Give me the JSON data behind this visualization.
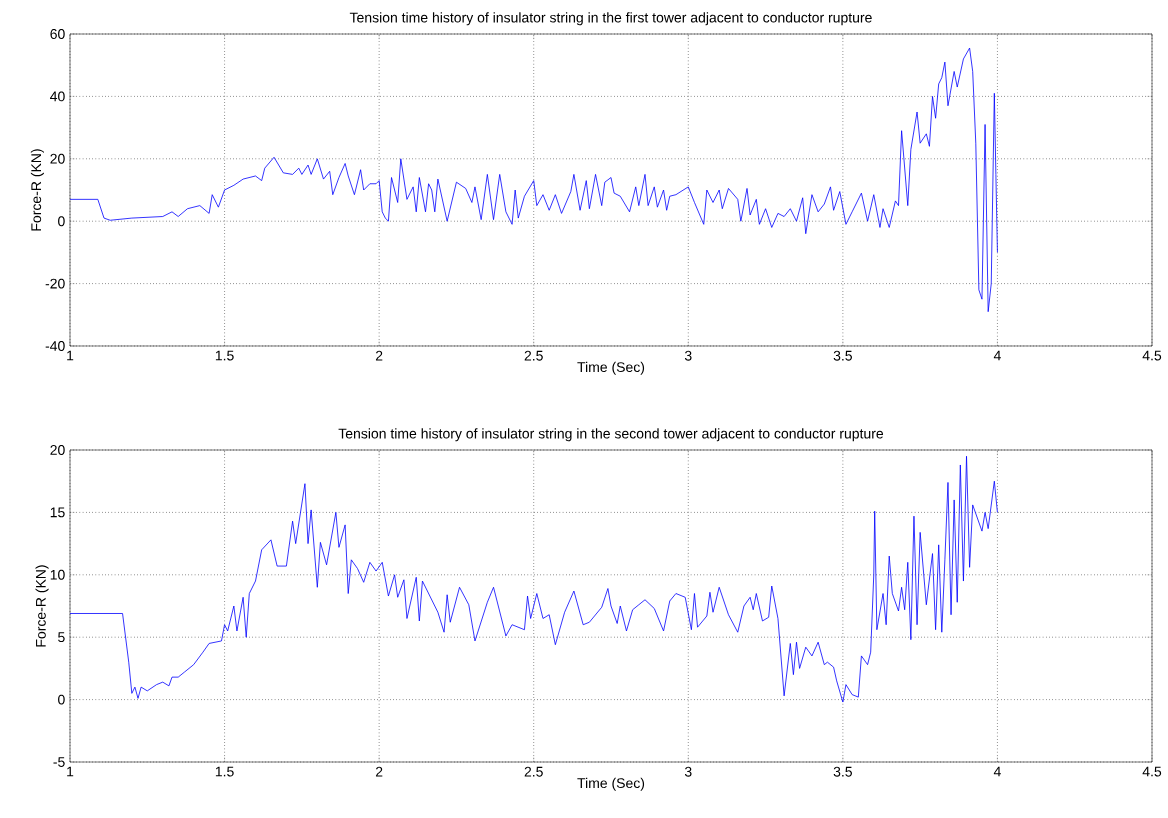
{
  "chart_data": [
    {
      "type": "line",
      "title": "Tension time history of insulator string in the first tower adjacent to conductor rupture",
      "xlabel": "Time (Sec)",
      "ylabel": "Force-R (KN)",
      "x": [
        1.0,
        1.09,
        1.11,
        1.13,
        1.2,
        1.3,
        1.33,
        1.35,
        1.38,
        1.42,
        1.45,
        1.46,
        1.48,
        1.5,
        1.53,
        1.56,
        1.6,
        1.62,
        1.63,
        1.66,
        1.69,
        1.72,
        1.74,
        1.75,
        1.77,
        1.78,
        1.8,
        1.82,
        1.84,
        1.85,
        1.87,
        1.89,
        1.9,
        1.92,
        1.94,
        1.95,
        1.97,
        1.99,
        2.0,
        2.01,
        2.02,
        2.03,
        2.04,
        2.06,
        2.07,
        2.09,
        2.11,
        2.12,
        2.13,
        2.15,
        2.16,
        2.17,
        2.18,
        2.19,
        2.22,
        2.25,
        2.28,
        2.3,
        2.31,
        2.33,
        2.35,
        2.37,
        2.39,
        2.41,
        2.43,
        2.44,
        2.45,
        2.47,
        2.5,
        2.51,
        2.53,
        2.55,
        2.57,
        2.59,
        2.62,
        2.63,
        2.65,
        2.67,
        2.68,
        2.7,
        2.72,
        2.73,
        2.75,
        2.76,
        2.78,
        2.81,
        2.83,
        2.84,
        2.86,
        2.87,
        2.89,
        2.9,
        2.92,
        2.93,
        2.94,
        2.96,
        3.0,
        3.02,
        3.05,
        3.06,
        3.08,
        3.1,
        3.11,
        3.13,
        3.16,
        3.17,
        3.19,
        3.2,
        3.22,
        3.23,
        3.25,
        3.27,
        3.29,
        3.31,
        3.33,
        3.35,
        3.37,
        3.38,
        3.4,
        3.42,
        3.44,
        3.46,
        3.47,
        3.49,
        3.51,
        3.53,
        3.56,
        3.58,
        3.6,
        3.62,
        3.63,
        3.65,
        3.67,
        3.68,
        3.69,
        3.71,
        3.72,
        3.74,
        3.75,
        3.77,
        3.78,
        3.79,
        3.8,
        3.81,
        3.82,
        3.83,
        3.84,
        3.86,
        3.87,
        3.89,
        3.91,
        3.92,
        3.93,
        3.94,
        3.95,
        3.96,
        3.97,
        3.98,
        3.99,
        3.995,
        4.0
      ],
      "series": [
        {
          "color": "#0000ff",
          "values": [
            7,
            7,
            1,
            0.3,
            1,
            1.5,
            3,
            1.5,
            4,
            5,
            2.5,
            8.5,
            4.5,
            10,
            11.5,
            13.5,
            14.5,
            13,
            17,
            20.5,
            15.5,
            15,
            17,
            15,
            18,
            15,
            20,
            13.5,
            16,
            8.5,
            14,
            18.5,
            14.5,
            8.5,
            16.5,
            10,
            12,
            12,
            13,
            3,
            1,
            0,
            14,
            6,
            20,
            7,
            11,
            3,
            14,
            3,
            12,
            10,
            3,
            13.5,
            0,
            12.5,
            10.5,
            6,
            11,
            0.5,
            15,
            0.5,
            15,
            3,
            -1,
            10,
            1,
            8,
            13,
            5,
            8.5,
            3.5,
            8.5,
            2.5,
            9.5,
            15,
            3.5,
            13,
            4,
            15,
            5,
            12.5,
            14,
            9,
            8,
            3,
            11,
            5,
            15,
            5,
            11,
            4.5,
            10,
            3.5,
            8,
            8.5,
            11,
            6,
            -1,
            10,
            6,
            10,
            4,
            10.5,
            7,
            0,
            10.5,
            2,
            7,
            -1,
            4,
            -2,
            2.5,
            1.5,
            4,
            0,
            7.5,
            -4,
            8.5,
            3,
            5.5,
            11,
            3.5,
            9.5,
            -1,
            3,
            9,
            0,
            8.5,
            -2,
            4,
            -2,
            6.5,
            5,
            29,
            5,
            23,
            35,
            25,
            28,
            24,
            40,
            33,
            44,
            46,
            51,
            37,
            48,
            43,
            52,
            55.5,
            48,
            25,
            -22,
            -25,
            31,
            -29,
            -20,
            41,
            15,
            -10
          ]
        }
      ],
      "xlim": [
        1,
        4.5
      ],
      "xticks": [
        1,
        1.5,
        2,
        2.5,
        3,
        3.5,
        4,
        4.5
      ],
      "ylim": [
        -40,
        60
      ],
      "yticks": [
        -40,
        -20,
        0,
        20,
        40,
        60
      ],
      "grid": true
    },
    {
      "type": "line",
      "title": "Tension time history of insulator string in the second tower adjacent to conductor rupture",
      "xlabel": "Time (Sec)",
      "ylabel": "Force-R (KN)",
      "x": [
        1.0,
        1.17,
        1.19,
        1.2,
        1.21,
        1.22,
        1.23,
        1.25,
        1.28,
        1.3,
        1.32,
        1.33,
        1.35,
        1.37,
        1.4,
        1.43,
        1.45,
        1.49,
        1.5,
        1.51,
        1.53,
        1.54,
        1.56,
        1.57,
        1.58,
        1.6,
        1.62,
        1.65,
        1.67,
        1.7,
        1.72,
        1.73,
        1.76,
        1.77,
        1.78,
        1.8,
        1.81,
        1.83,
        1.86,
        1.87,
        1.89,
        1.9,
        1.91,
        1.93,
        1.95,
        1.97,
        1.99,
        2.01,
        2.03,
        2.05,
        2.06,
        2.08,
        2.09,
        2.12,
        2.13,
        2.14,
        2.19,
        2.21,
        2.22,
        2.23,
        2.26,
        2.29,
        2.31,
        2.35,
        2.37,
        2.41,
        2.43,
        2.47,
        2.48,
        2.49,
        2.51,
        2.53,
        2.55,
        2.57,
        2.6,
        2.63,
        2.66,
        2.68,
        2.72,
        2.74,
        2.75,
        2.77,
        2.78,
        2.8,
        2.82,
        2.84,
        2.86,
        2.89,
        2.92,
        2.94,
        2.96,
        2.99,
        3.01,
        3.02,
        3.03,
        3.06,
        3.07,
        3.08,
        3.1,
        3.13,
        3.16,
        3.18,
        3.2,
        3.21,
        3.22,
        3.24,
        3.26,
        3.27,
        3.29,
        3.31,
        3.33,
        3.34,
        3.35,
        3.36,
        3.38,
        3.4,
        3.42,
        3.44,
        3.45,
        3.47,
        3.48,
        3.5,
        3.51,
        3.53,
        3.55,
        3.56,
        3.58,
        3.59,
        3.6,
        3.603,
        3.61,
        3.63,
        3.64,
        3.65,
        3.66,
        3.68,
        3.69,
        3.7,
        3.71,
        3.72,
        3.73,
        3.74,
        3.75,
        3.77,
        3.79,
        3.8,
        3.81,
        3.82,
        3.83,
        3.84,
        3.85,
        3.86,
        3.87,
        3.88,
        3.89,
        3.9,
        3.91,
        3.92,
        3.95,
        3.96,
        3.97,
        3.99,
        4.0
      ],
      "series": [
        {
          "color": "#0000ff",
          "values": [
            6.9,
            6.9,
            3,
            0.5,
            1,
            0.1,
            1,
            0.7,
            1.2,
            1.4,
            1.1,
            1.8,
            1.8,
            2.2,
            2.8,
            3.8,
            4.5,
            4.7,
            6,
            5.5,
            7.5,
            5.5,
            8.2,
            5,
            8.5,
            9.5,
            12,
            12.8,
            10.7,
            10.7,
            14.3,
            12.5,
            17.3,
            12.5,
            15.2,
            9,
            12.6,
            10.8,
            15,
            12.2,
            14,
            8.5,
            11.2,
            10.5,
            9.4,
            11,
            10.3,
            11,
            8.3,
            10,
            8.2,
            9.6,
            6.5,
            9.8,
            6.3,
            9.5,
            7,
            5.4,
            8.4,
            6.2,
            9,
            7.6,
            4.7,
            7.8,
            9,
            5.1,
            6,
            5.6,
            8.3,
            6.5,
            8.5,
            6.5,
            6.8,
            4.4,
            7,
            8.7,
            6,
            6.2,
            7.4,
            8.9,
            7.5,
            6.1,
            7.5,
            5.5,
            7.2,
            7.6,
            8,
            7.3,
            5.5,
            7.9,
            8.5,
            8.2,
            5.6,
            8.5,
            5.8,
            6.7,
            8.6,
            7,
            9,
            6.8,
            5.4,
            7.5,
            8.2,
            7.2,
            8.5,
            6.3,
            6.6,
            9.1,
            6.5,
            0.3,
            4.5,
            2,
            4.6,
            2.5,
            4.2,
            3.5,
            4.6,
            2.8,
            3,
            2.6,
            1.5,
            -0.2,
            1.2,
            0.4,
            0.2,
            3.5,
            2.8,
            3.8,
            10,
            15.1,
            5.6,
            8.5,
            6,
            11.5,
            8.5,
            7.1,
            9,
            7.2,
            11,
            4.8,
            14.7,
            6,
            13.4,
            7.6,
            11.7,
            5.6,
            12.4,
            5.4,
            11.2,
            17.4,
            6.8,
            16,
            7.8,
            18.8,
            9.5,
            19.5,
            10.6,
            15.6,
            13.5,
            15,
            13.7,
            17.5,
            15
          ]
        }
      ],
      "xlim": [
        1,
        4.5
      ],
      "xticks": [
        1,
        1.5,
        2,
        2.5,
        3,
        3.5,
        4,
        4.5
      ],
      "ylim": [
        -5,
        20
      ],
      "yticks": [
        -5,
        0,
        5,
        10,
        15,
        20
      ],
      "grid": true
    }
  ]
}
